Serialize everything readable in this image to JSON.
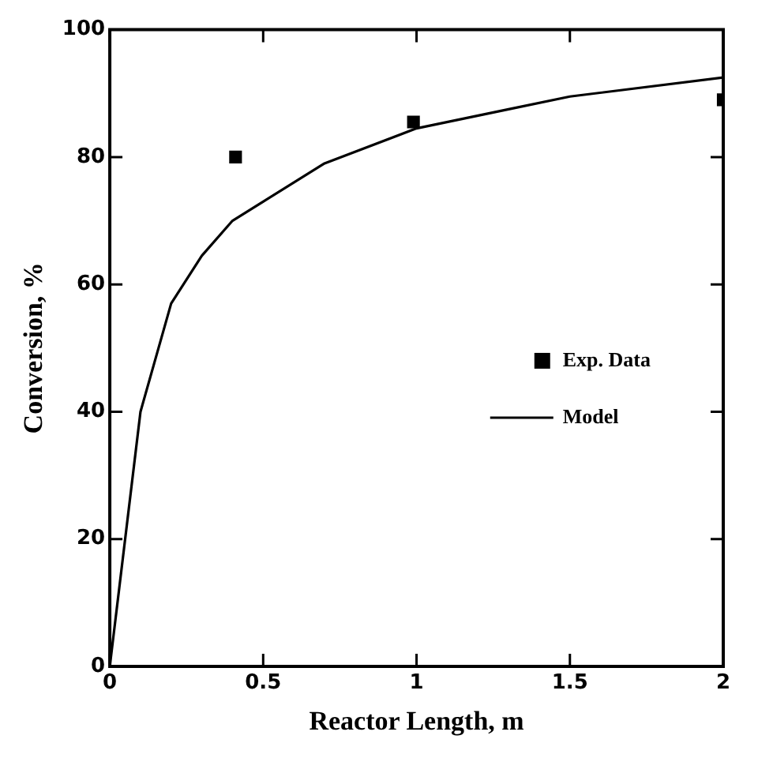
{
  "chart_data": {
    "type": "scatter",
    "xlabel": "Reactor Length, m",
    "ylabel": "Conversion, %",
    "xlim": [
      0,
      2
    ],
    "xticks": [
      0,
      0.5,
      1,
      1.5,
      2
    ],
    "ylim": [
      0,
      100
    ],
    "yticks": [
      0,
      20,
      40,
      60,
      80,
      100
    ],
    "grid": false,
    "legend": "right",
    "series": [
      {
        "name": "Exp. Data",
        "type": "scatter",
        "marker": "square",
        "color": "#000000",
        "x": [
          0.41,
          0.99,
          2.0
        ],
        "values": [
          80,
          85.5,
          89
        ]
      },
      {
        "name": "Model",
        "type": "line",
        "marker": "none",
        "line_style": "solid",
        "color": "#000000",
        "x": [
          0,
          0.05,
          0.1,
          0.2,
          0.3,
          0.4,
          0.5,
          0.7,
          1.0,
          1.3,
          1.5,
          2.0
        ],
        "values": [
          0,
          20,
          40,
          57,
          64.5,
          70,
          73,
          79,
          84.5,
          87.5,
          89.5,
          92.5
        ]
      }
    ]
  }
}
